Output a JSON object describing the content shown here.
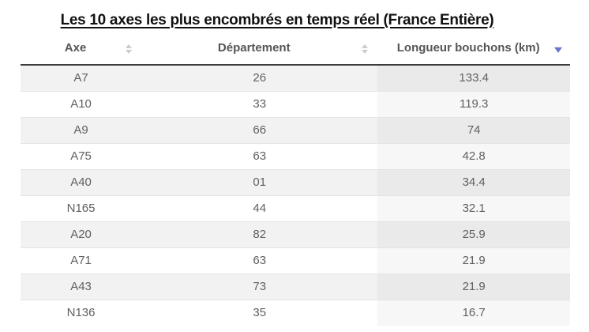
{
  "title": {
    "text": "Les 10 axes les plus encombrés en temps réel (France Entière)"
  },
  "chart_data": {
    "type": "table",
    "title": "Les 10 axes les plus encombrés en temps réel (France Entière)",
    "columns": [
      "Axe",
      "Département",
      "Longueur bouchons (km)"
    ],
    "column_keys": [
      "axe",
      "departement",
      "longueur-bouchons-km"
    ],
    "rows": [
      [
        "A7",
        "26",
        "133.4"
      ],
      [
        "A10",
        "33",
        "119.3"
      ],
      [
        "A9",
        "66",
        "74"
      ],
      [
        "A75",
        "63",
        "42.8"
      ],
      [
        "A40",
        "01",
        "34.4"
      ],
      [
        "N165",
        "44",
        "32.1"
      ],
      [
        "A20",
        "82",
        "25.9"
      ],
      [
        "A71",
        "63",
        "21.9"
      ],
      [
        "A43",
        "73",
        "21.9"
      ],
      [
        "N136",
        "35",
        "16.7"
      ]
    ],
    "sort": {
      "column": "Longueur bouchons (km)",
      "column_index": 2,
      "direction": "desc"
    }
  },
  "icons": {
    "sort_neutral": "up-down-triangles",
    "sort_active_desc": "down-triangle"
  },
  "colors": {
    "sort_active": "#6677cc",
    "sort_inactive": "#cccccc",
    "header_border": "#3b3b3b",
    "row_alt": "#f2f2f2",
    "sorted_col_on_alt": "#eaeaea",
    "sorted_col_on_white": "#f7f7f7",
    "cell_text": "#606060",
    "header_text": "#555555"
  }
}
